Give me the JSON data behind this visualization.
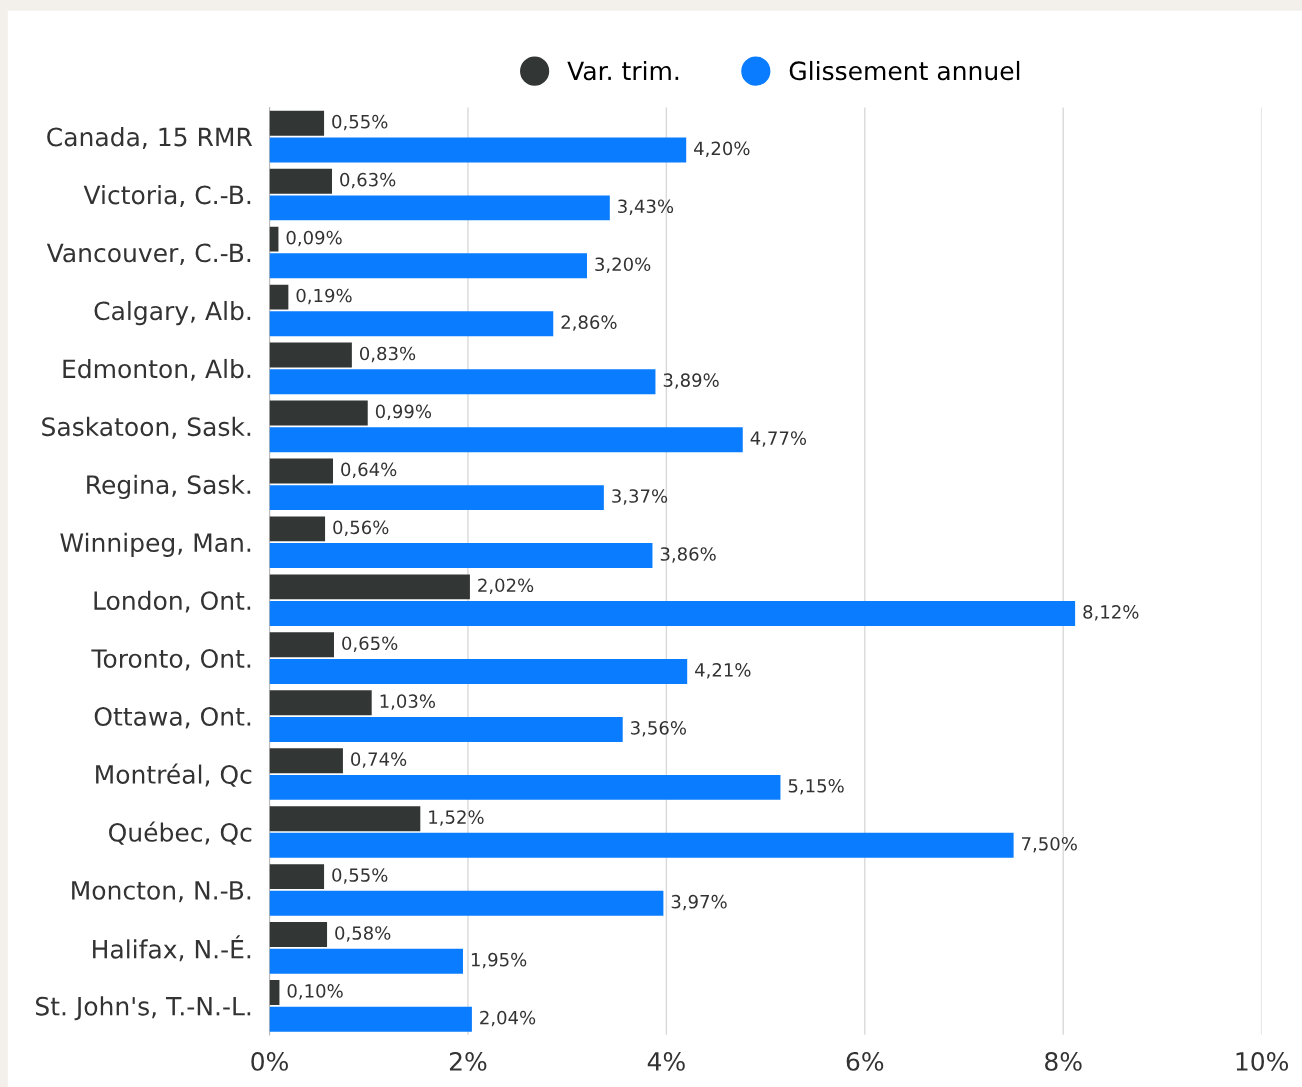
{
  "chart_data": {
    "type": "bar",
    "orientation": "horizontal",
    "categories": [
      "Canada, 15 RMR",
      "Victoria, C.-B.",
      "Vancouver, C.-B.",
      "Calgary, Alb.",
      "Edmonton, Alb.",
      "Saskatoon, Sask.",
      "Regina, Sask.",
      "Winnipeg, Man.",
      "London, Ont.",
      "Toronto, Ont.",
      "Ottawa, Ont.",
      "Montréal, Qc",
      "Québec, Qc",
      "Moncton, N.-B.",
      "Halifax, N.-É.",
      "St. John's, T.-N.-L."
    ],
    "series": [
      {
        "name": "Var. trim.",
        "color": "#323634",
        "values": [
          0.55,
          0.63,
          0.09,
          0.19,
          0.83,
          0.99,
          0.64,
          0.56,
          2.02,
          0.65,
          1.03,
          0.74,
          1.52,
          0.55,
          0.58,
          0.1
        ],
        "value_labels": [
          "0,55%",
          "0,63%",
          "0,09%",
          "0,19%",
          "0,83%",
          "0,99%",
          "0,64%",
          "0,56%",
          "2,02%",
          "0,65%",
          "1,03%",
          "0,74%",
          "1,52%",
          "0,55%",
          "0,58%",
          "0,10%"
        ]
      },
      {
        "name": "Glissement annuel",
        "color": "#0a7cff",
        "values": [
          4.2,
          3.43,
          3.2,
          2.86,
          3.89,
          4.77,
          3.37,
          3.86,
          8.12,
          4.21,
          3.56,
          5.15,
          7.5,
          3.97,
          1.95,
          2.04
        ],
        "value_labels": [
          "4,20%",
          "3,43%",
          "3,20%",
          "2,86%",
          "3,89%",
          "4,77%",
          "3,37%",
          "3,86%",
          "8,12%",
          "4,21%",
          "3,56%",
          "5,15%",
          "7,50%",
          "3,97%",
          "1,95%",
          "2,04%"
        ]
      }
    ],
    "xlim": [
      0,
      10
    ],
    "xticks": [
      {
        "value": 0,
        "label": "0%"
      },
      {
        "value": 2,
        "label": "2%"
      },
      {
        "value": 4,
        "label": "4%"
      },
      {
        "value": 6,
        "label": "6%"
      },
      {
        "value": 8,
        "label": "8%"
      },
      {
        "value": 10,
        "label": "10%"
      }
    ],
    "grid": "x",
    "legend": "top"
  }
}
